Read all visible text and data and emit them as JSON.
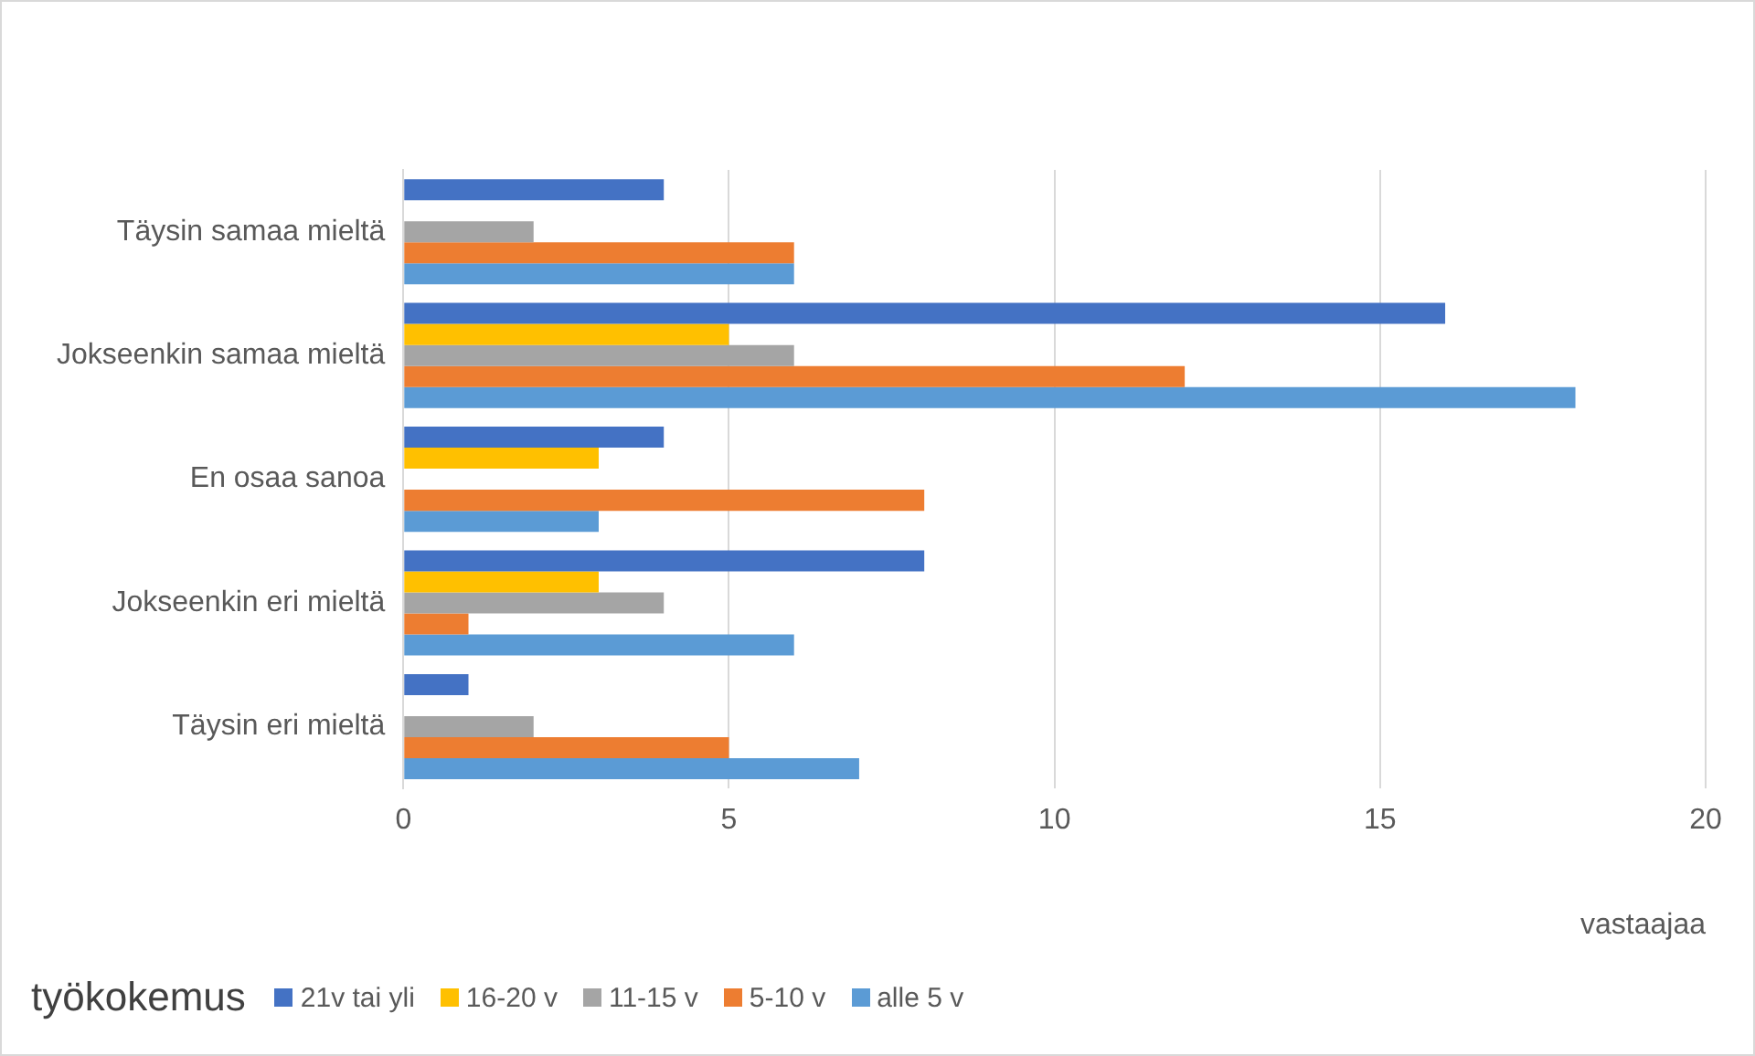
{
  "chart_data": {
    "type": "bar",
    "orientation": "horizontal",
    "categories": [
      "Täysin samaa mieltä",
      "Jokseenkin samaa mieltä",
      "En osaa sanoa",
      "Jokseenkin eri mieltä",
      "Täysin eri mieltä"
    ],
    "series": [
      {
        "name": "21v tai yli",
        "color": "#4472c4",
        "values": [
          4,
          16,
          4,
          8,
          1
        ]
      },
      {
        "name": "16-20 v",
        "color": "#ffc000",
        "values": [
          0,
          5,
          3,
          3,
          0
        ]
      },
      {
        "name": "11-15 v",
        "color": "#a5a5a5",
        "values": [
          2,
          6,
          0,
          4,
          2
        ]
      },
      {
        "name": "5-10 v",
        "color": "#ed7d31",
        "values": [
          6,
          12,
          8,
          1,
          5
        ]
      },
      {
        "name": "alle 5 v",
        "color": "#5b9bd5",
        "values": [
          6,
          18,
          3,
          6,
          7
        ]
      }
    ],
    "xlim": [
      0,
      20
    ],
    "xticks": [
      0,
      5,
      10,
      15,
      20
    ],
    "xlabel": "vastaajaa",
    "legend_title": "työkokemus",
    "legend": "bottom",
    "grid": "x"
  }
}
